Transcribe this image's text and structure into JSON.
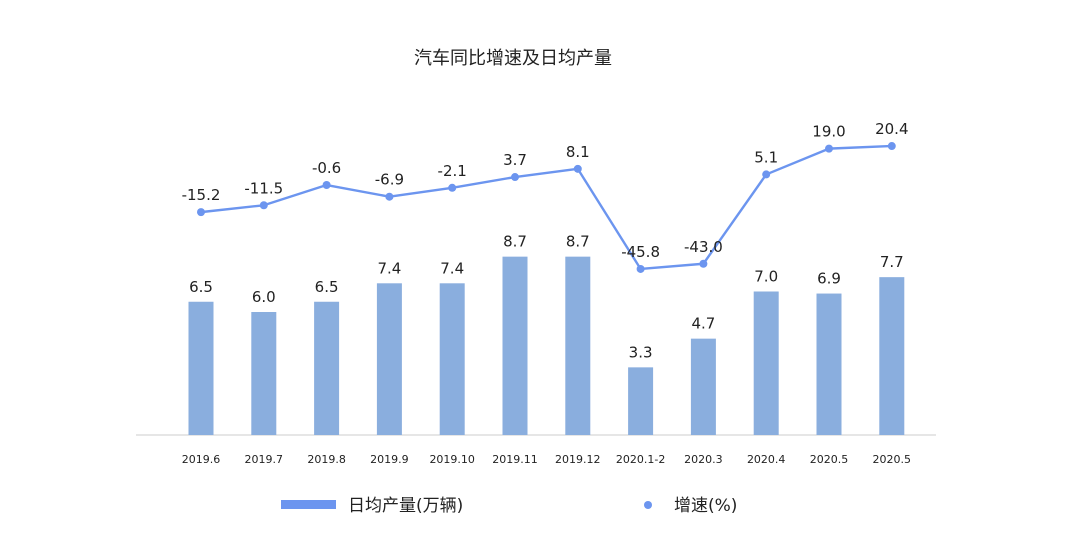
{
  "chart_data": {
    "type": "bar",
    "title": "汽车同比增速及日均产量",
    "categories": [
      "2019.6",
      "2019.7",
      "2019.8",
      "2019.9",
      "2019.10",
      "2019.11",
      "2019.12",
      "2020.1-2",
      "2020.3",
      "2020.4",
      "2020.5",
      "2020.5"
    ],
    "series": [
      {
        "name": "日均产量(万辆)",
        "type": "bar",
        "values": [
          6.5,
          6.0,
          6.5,
          7.4,
          7.4,
          8.7,
          8.7,
          3.3,
          4.7,
          7.0,
          6.9,
          7.7
        ],
        "labels": [
          "6.5",
          "6.0",
          "6.5",
          "7.4",
          "7.4",
          "8.7",
          "8.7",
          "3.3",
          "4.7",
          "7.0",
          "6.9",
          "7.7"
        ]
      },
      {
        "name": "增速(%)",
        "type": "line",
        "values": [
          -15.2,
          -11.5,
          -0.6,
          -6.9,
          -2.1,
          3.7,
          8.1,
          -45.8,
          -43.0,
          5.1,
          19.0,
          20.4
        ],
        "labels": [
          "-15.2",
          "-11.5",
          "-0.6",
          "-6.9",
          "-2.1",
          "3.7",
          "8.1",
          "-45.8",
          "-43.0",
          "5.1",
          "19.0",
          "20.4"
        ]
      }
    ],
    "legend_position": "bottom",
    "grid": false,
    "colors": {
      "bar": "#8aaede",
      "line": "#6c95ef",
      "baseline": "#cccccc",
      "text": "#222222"
    }
  }
}
